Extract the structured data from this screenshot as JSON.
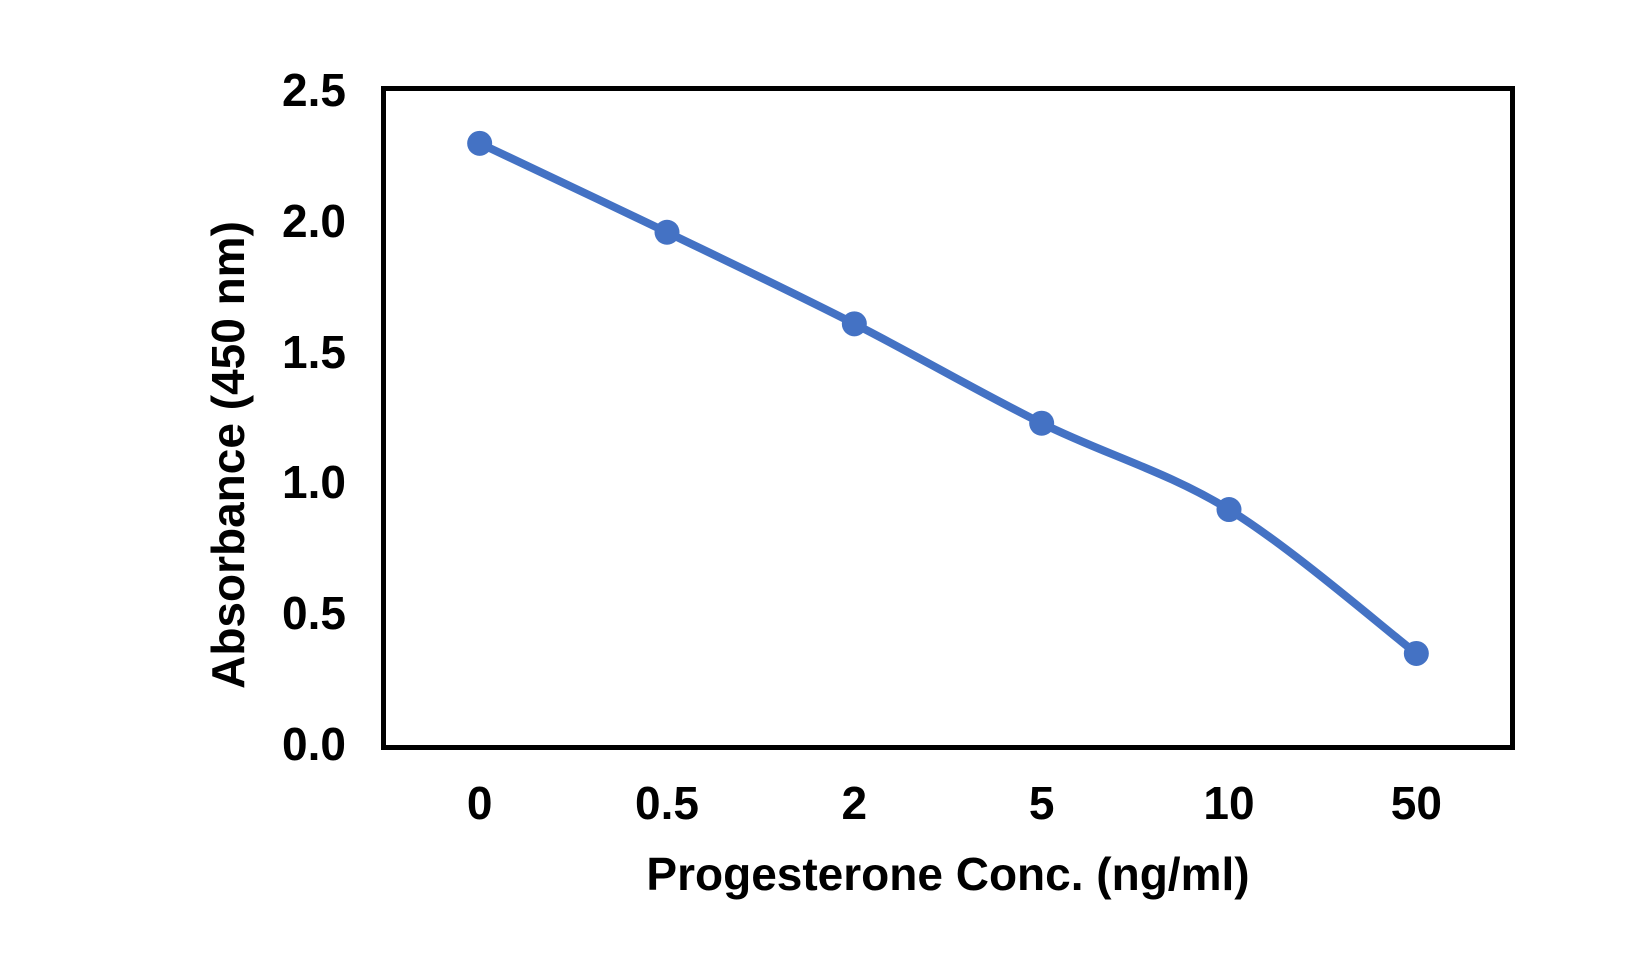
{
  "chart_data": {
    "type": "line",
    "title": "",
    "categories": [
      "0",
      "0.5",
      "2",
      "5",
      "10",
      "50"
    ],
    "series": [
      {
        "name": "Absorbance",
        "values": [
          2.3,
          1.96,
          1.61,
          1.23,
          0.9,
          0.35
        ]
      }
    ],
    "xlabel": "Progesterone Conc. (ng/ml)",
    "ylabel": "Absorbance (450 nm)",
    "ylim": [
      0,
      2.5
    ],
    "y_tick_labels": [
      "2.5",
      "2.0",
      "1.5",
      "1.0",
      "0.5",
      "0.0"
    ],
    "x_tick_labels": [
      "0",
      "0.5",
      "2",
      "5",
      "10",
      "50"
    ],
    "grid": false,
    "legend": "none",
    "smooth": true,
    "marker": "circle",
    "line_color": "#4472C4",
    "marker_color": "#4472C4",
    "axis_color": "#000000",
    "text_color": "#000000",
    "background": "#FFFFFF"
  }
}
